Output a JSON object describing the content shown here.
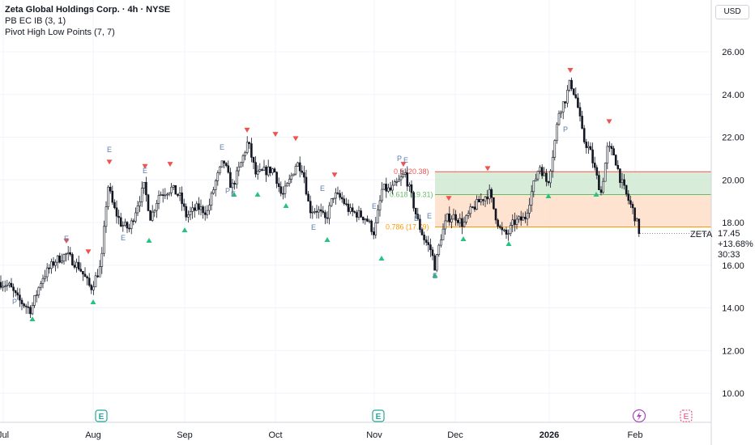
{
  "header": {
    "title": "Zeta Global Holdings Corp. · 4h · NYSE",
    "indicators": [
      "PB EC IB (3, 1)",
      "Pivot High Low Points (7, 7)"
    ]
  },
  "currency_button": "USD",
  "price_axis": {
    "ticks": [
      "26.00",
      "24.00",
      "22.00",
      "20.00",
      "18.00",
      "16.00",
      "14.00",
      "12.00",
      "10.00"
    ]
  },
  "time_axis": {
    "labels": [
      "Jul",
      "Aug",
      "Sep",
      "Oct",
      "Nov",
      "Dec",
      "2026",
      "Feb"
    ]
  },
  "price_label": {
    "symbol": "ZETA",
    "price": "17.45",
    "change": "+13.68%",
    "countdown": "30:33"
  },
  "fib_levels": [
    {
      "ratio": "0.5",
      "price": "(20.38)",
      "color": "#ef5350"
    },
    {
      "ratio": "0.618",
      "price": "(19.31)",
      "color": "#66bb6a"
    },
    {
      "ratio": "0.786",
      "price": "(17.79)",
      "color": "#ff9800"
    }
  ],
  "markers": {
    "pivot_letter": "P",
    "earnings_letter": "E"
  },
  "colors": {
    "up": "#131722",
    "down": "#131722",
    "pivot_high": "#ef5350",
    "pivot_low": "#26c281",
    "fib_red": "#ef5350",
    "fib_green": "#66bb6a",
    "fib_orange": "#ff9800",
    "zone_green": "#c8e6c9",
    "zone_orange": "#ffe0cc",
    "event_icon": "#26a69a",
    "flash_icon": "#ab47bc"
  },
  "chart_data": {
    "type": "candlestick",
    "title": "Zeta Global Holdings Corp. · 4h · NYSE",
    "ylim": [
      9.0,
      27.0
    ],
    "x_labels": [
      "Jul",
      "Aug",
      "Sep",
      "Oct",
      "Nov",
      "Dec",
      "2026",
      "Feb"
    ],
    "last_price": 17.45,
    "change_percent": "+13.68%",
    "fib_prices": [
      20.38,
      19.31,
      17.79
    ],
    "pivot_highs": [
      20.6,
      16.9,
      16.4,
      20.4,
      20.5,
      22.1,
      21.9,
      21.7,
      20.0,
      20.5,
      18.9,
      20.3,
      24.9,
      22.5
    ],
    "pivot_lows": [
      13.4,
      14.3,
      17.0,
      17.5,
      18.9,
      18.9,
      18.6,
      17.4,
      16.9,
      15.5,
      17.3,
      16.8,
      19.2,
      19.3
    ]
  }
}
